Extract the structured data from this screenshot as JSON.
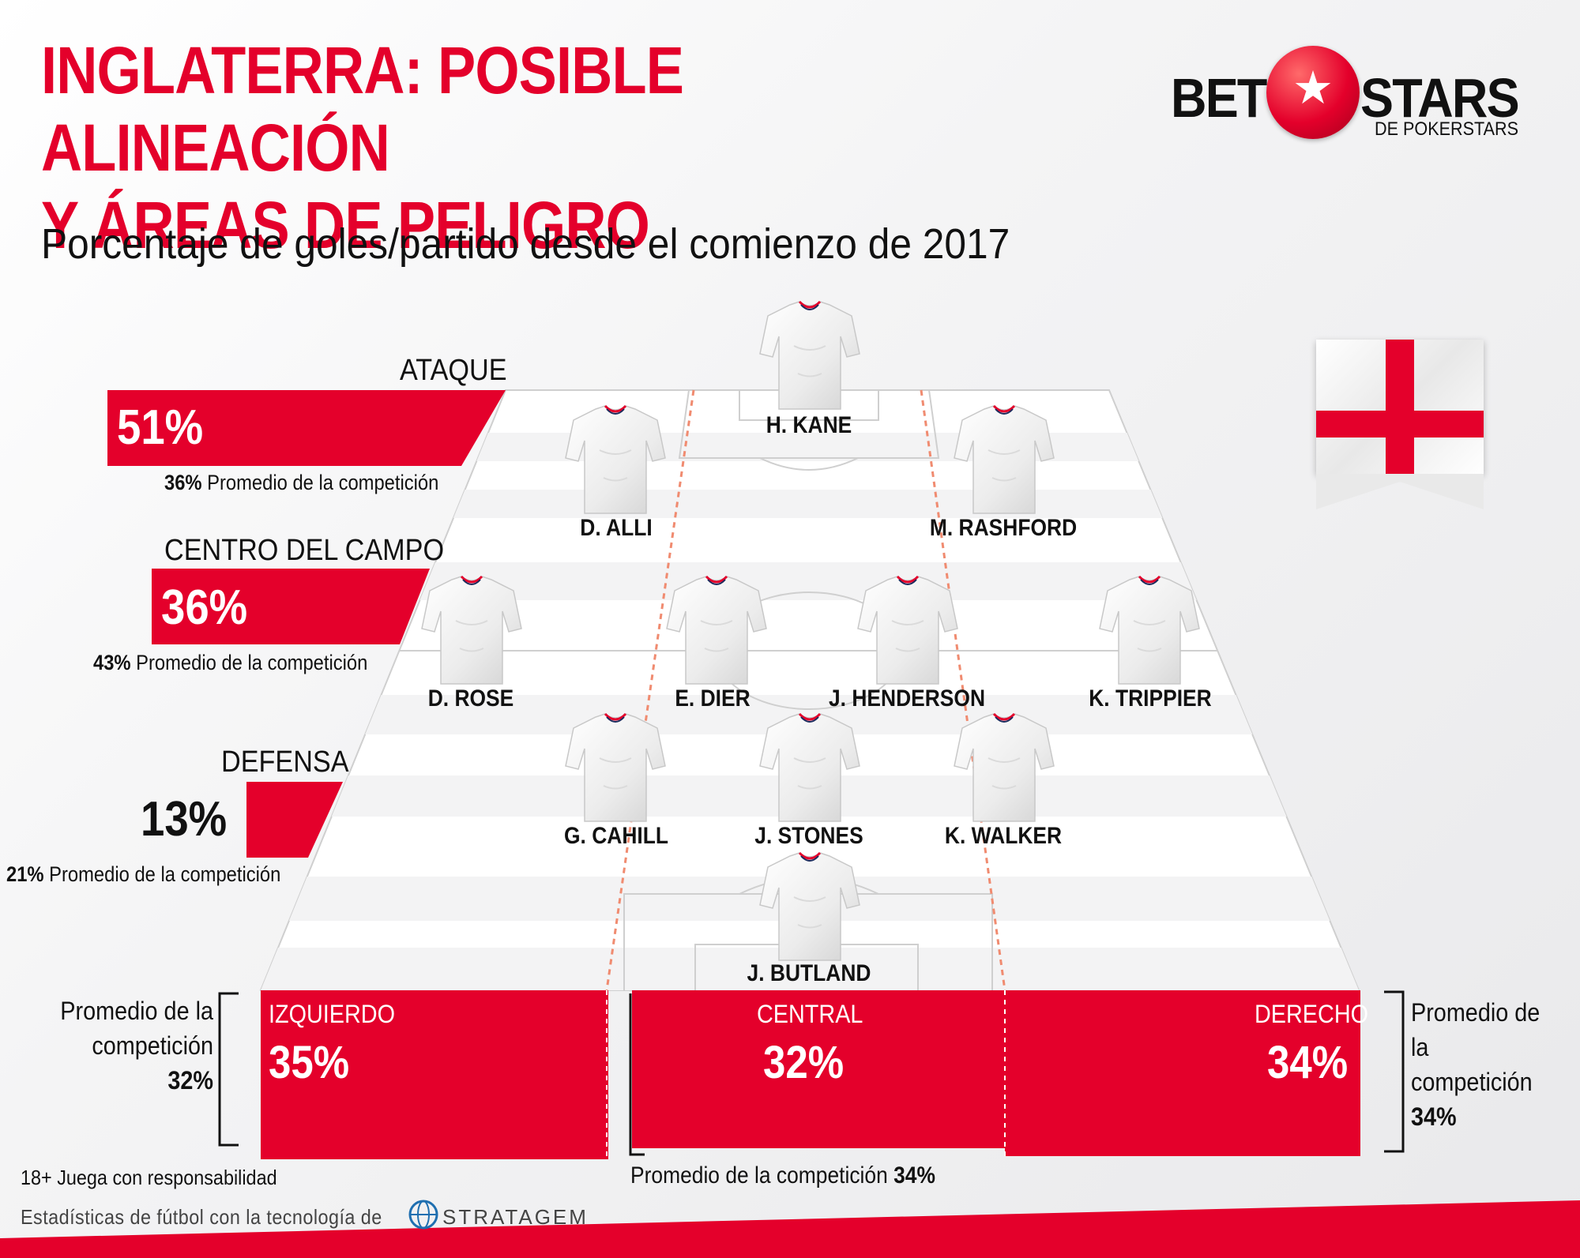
{
  "title": {
    "line1": "INGLATERRA: POSIBLE ALINEACIÓN",
    "line2": "Y ÁREAS DE PELIGRO",
    "subtitle": "Porcentaje de goles/partido desde el comienzo de 2017"
  },
  "logo": {
    "bet": "BET",
    "stars": "STARS",
    "sub": "DE POKERSTARS",
    "star_glyph": "★"
  },
  "zones": {
    "attack": {
      "label": "ATAQUE",
      "value": "51%",
      "avg_value": "36%",
      "avg_text": " Promedio de la competición"
    },
    "midfield": {
      "label": "CENTRO DEL CAMPO",
      "value": "36%",
      "avg_value": "43%",
      "avg_text": " Promedio de la competición"
    },
    "defense": {
      "label": "DEFENSA",
      "value": "13%",
      "avg_value": "21%",
      "avg_text": " Promedio de la competición"
    }
  },
  "players": {
    "kane": "H. KANE",
    "alli": "D. ALLI",
    "rashford": "M. RASHFORD",
    "rose": "D. ROSE",
    "dier": "E. DIER",
    "henderson": "J. HENDERSON",
    "trippier": "K. TRIPPIER",
    "cahill": "G. CAHILL",
    "stones": "J. STONES",
    "walker": "K. WALKER",
    "butland": "J. BUTLAND"
  },
  "sections": {
    "left": {
      "label": "IZQUIERDO",
      "value": "35%"
    },
    "central": {
      "label": "CENTRAL",
      "value": "32%"
    },
    "right": {
      "label": "DERECHO",
      "value": "34%"
    }
  },
  "side_avgs": {
    "left": {
      "line1": "Promedio de la",
      "line2": "competición",
      "value": "32%"
    },
    "right": {
      "line1": "Promedio de la",
      "line2": "competición",
      "value": "34%"
    },
    "central": {
      "text": "Promedio de la competición ",
      "value": "34%"
    }
  },
  "footer": {
    "responsible": "18+ Juega con responsabilidad",
    "powered": "Estadísticas de fútbol con la tecnología de",
    "stratagem": "STRATAGEM"
  },
  "colors": {
    "accent_red": "#e4002b",
    "text": "#111111"
  }
}
